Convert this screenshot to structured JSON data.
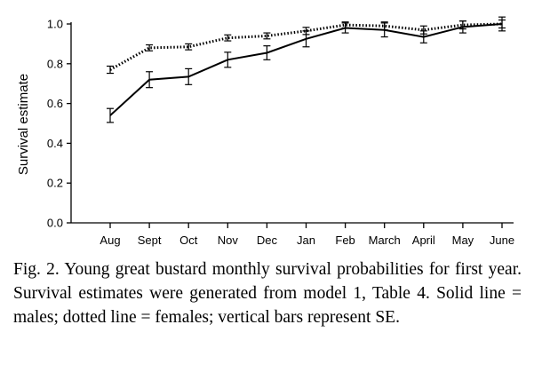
{
  "caption": "Fig. 2.  Young great bustard monthly survival probabilities for first year. Survival estimates were generated from model 1, Table 4. Solid line = males; dotted line = females; vertical bars represent SE.",
  "chart_data": {
    "type": "line",
    "title": "",
    "xlabel": "",
    "ylabel": "Survival estimate",
    "ylim": [
      0,
      1.0
    ],
    "yticks": [
      "0.0",
      "0.2",
      "0.4",
      "0.6",
      "0.8",
      "1.0"
    ],
    "categories": [
      "Aug",
      "Sept",
      "Oct",
      "Nov",
      "Dec",
      "Jan",
      "Feb",
      "March",
      "April",
      "May",
      "June"
    ],
    "grid": false,
    "series": [
      {
        "line_style": "solid",
        "values": [
          0.54,
          0.72,
          0.735,
          0.82,
          0.855,
          0.925,
          0.98,
          0.97,
          0.935,
          0.985,
          1.0
        ],
        "se": [
          0.035,
          0.04,
          0.04,
          0.038,
          0.035,
          0.04,
          0.025,
          0.035,
          0.03,
          0.03,
          0.035
        ]
      },
      {
        "line_style": "dotted",
        "values": [
          0.77,
          0.88,
          0.885,
          0.93,
          0.94,
          0.965,
          0.995,
          0.99,
          0.97,
          0.995,
          1.0
        ],
        "se": [
          0.018,
          0.015,
          0.015,
          0.015,
          0.015,
          0.018,
          0.015,
          0.02,
          0.02,
          0.02,
          0.02
        ]
      }
    ]
  }
}
